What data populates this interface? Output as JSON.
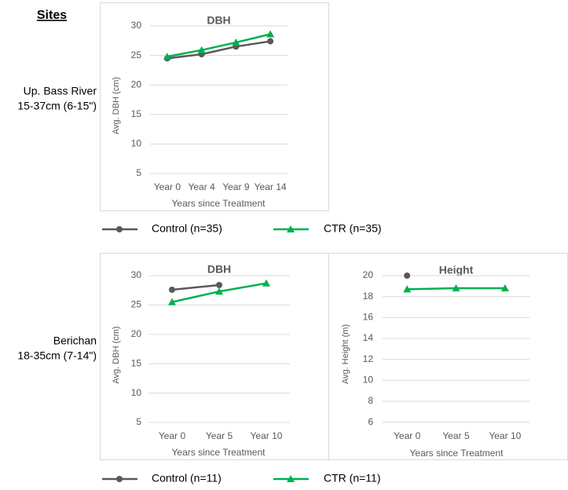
{
  "heading": "Sites",
  "sites": [
    {
      "name": "Up. Bass River",
      "range": "15-37cm (6-15\")"
    },
    {
      "name": "Berichan",
      "range": "18-35cm (7-14\")"
    }
  ],
  "chart_data": [
    {
      "type": "line",
      "title": "DBH",
      "x_label": "Years since Treatment",
      "y_label": "Avg. DBH (cm)",
      "categories": [
        "Year 0",
        "Year 4",
        "Year 9",
        "Year 14"
      ],
      "series": [
        {
          "name": "Control (n=35)",
          "color": "#595959",
          "marker": "circle",
          "values": [
            24.5,
            25.2,
            26.5,
            27.4
          ]
        },
        {
          "name": "CTR (n=35)",
          "color": "#00b050",
          "marker": "triangle",
          "values": [
            24.8,
            25.9,
            27.2,
            28.6
          ]
        }
      ],
      "ylim": [
        3,
        30
      ],
      "yticks": [
        5,
        10,
        15,
        20,
        25,
        30
      ],
      "grid": true
    },
    {
      "type": "line",
      "title": "DBH",
      "x_label": "Years since Treatment",
      "y_label": "Avg. DBH (cm)",
      "categories": [
        "Year 0",
        "Year 5",
        "Year 10"
      ],
      "series": [
        {
          "name": "Control (n=11)",
          "color": "#595959",
          "marker": "circle",
          "values": [
            27.6,
            28.4,
            null
          ]
        },
        {
          "name": "CTR (n=11)",
          "color": "#00b050",
          "marker": "triangle",
          "values": [
            25.5,
            27.3,
            28.7
          ]
        }
      ],
      "ylim": [
        3,
        30
      ],
      "yticks": [
        5,
        10,
        15,
        20,
        25,
        30
      ],
      "grid": true
    },
    {
      "type": "line",
      "title": "Height",
      "x_label": "Years since Treatment",
      "y_label": "Avg. Height (m)",
      "categories": [
        "Year 0",
        "Year 5",
        "Year 10"
      ],
      "series": [
        {
          "color": "#595959",
          "marker": "circle",
          "values": [
            20.0,
            null,
            null
          ]
        },
        {
          "color": "#00b050",
          "marker": "triangle",
          "values": [
            18.7,
            18.8,
            18.8
          ]
        }
      ],
      "ylim": [
        5,
        20
      ],
      "yticks": [
        6,
        8,
        10,
        12,
        14,
        16,
        18,
        20
      ],
      "grid": true
    }
  ]
}
